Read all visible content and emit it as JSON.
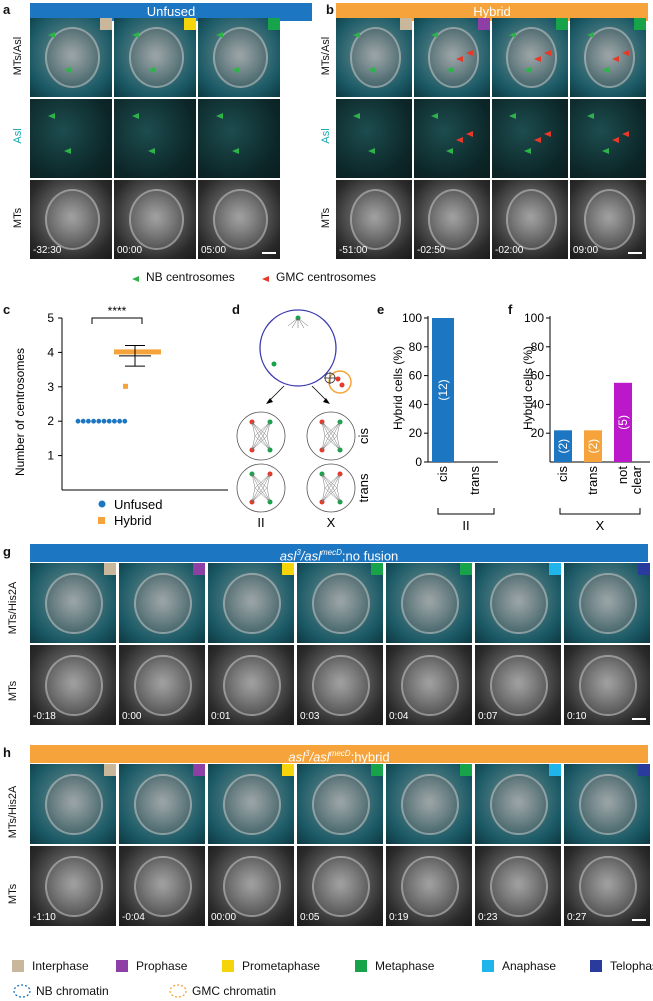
{
  "panels": {
    "a": "a",
    "b": "b",
    "c": "c",
    "d": "d",
    "e": "e",
    "f": "f",
    "g": "g",
    "h": "h"
  },
  "a": {
    "banner": "Unfused",
    "rows": [
      "MTs/Asl",
      "Asl",
      "MTs"
    ],
    "times": [
      "-32:30",
      "00:00",
      "05:00"
    ],
    "chips": [
      "#c8b79a",
      "#f5d40a",
      "#16a34a"
    ]
  },
  "b": {
    "banner": "Hybrid",
    "rows": [
      "MTs/Asl",
      "Asl",
      "MTs"
    ],
    "times": [
      "-51:00",
      "-02:50",
      "-02:00",
      "09:00"
    ],
    "chips": [
      "#c8b79a",
      "#8e3fa6",
      "#16a34a",
      "#16a34a"
    ]
  },
  "legend_ab": {
    "nb": "NB centrosomes",
    "gmc": "GMC centrosomes"
  },
  "c": {
    "ylabel": "Number of centrosomes",
    "sig": "****",
    "legend": [
      "Unfused",
      "Hybrid"
    ]
  },
  "d": {
    "cis": "cis",
    "trans": "trans",
    "ii": "II",
    "x": "X"
  },
  "e": {
    "ylabel": "Hybrid cells (%)",
    "group": "II"
  },
  "f": {
    "ylabel": "Hybrid cells (%)",
    "group": "X"
  },
  "g": {
    "banner_main": "asl",
    "banner_sup1": "3",
    "banner_sep": "/asl",
    "banner_sup2": "mecD",
    "banner_tail": ";no fusion",
    "rows": [
      "MTs/His2A",
      "MTs"
    ],
    "times": [
      "-0:18",
      "0:00",
      "0:01",
      "0:03",
      "0:04",
      "0:07",
      "0:10"
    ],
    "chips": [
      "#c8b79a",
      "#8e3fa6",
      "#f5d40a",
      "#16a34a",
      "#16a34a",
      "#1fb4ea",
      "#2a3b9e"
    ]
  },
  "h": {
    "banner_main": "asl",
    "banner_sup1": "3",
    "banner_sep": "/asl",
    "banner_sup2": "mecD",
    "banner_tail": ";hybrid",
    "rows": [
      "MTs/His2A",
      "MTs"
    ],
    "times": [
      "-1:10",
      "-0:04",
      "00:00",
      "0:05",
      "0:19",
      "0:23",
      "0:27"
    ],
    "chips": [
      "#c8b79a",
      "#8e3fa6",
      "#f5d40a",
      "#16a34a",
      "#16a34a",
      "#1fb4ea",
      "#2a3b9e"
    ]
  },
  "phase_legend": [
    {
      "label": "Interphase",
      "color": "#c8b79a"
    },
    {
      "label": "Prophase",
      "color": "#8e3fa6"
    },
    {
      "label": "Prometaphase",
      "color": "#f5d40a"
    },
    {
      "label": "Metaphase",
      "color": "#16a34a"
    },
    {
      "label": "Anaphase",
      "color": "#1fb4ea"
    },
    {
      "label": "Telophase",
      "color": "#2a3b9e"
    }
  ],
  "chromatin_legend": {
    "nb": "NB chromatin",
    "gmc": "GMC chromatin"
  },
  "colors": {
    "unfused": "#1d76c2",
    "hybrid": "#f5a33a",
    "purple": "#bb18c9"
  },
  "chart_data": [
    {
      "type": "scatter",
      "panel": "c",
      "ylabel": "Number of centrosomes",
      "ylim": [
        0,
        5
      ],
      "yticks": [
        1,
        2,
        3,
        4,
        5
      ],
      "series": [
        {
          "name": "Unfused",
          "values": [
            2,
            2,
            2,
            2,
            2,
            2,
            2,
            2,
            2,
            2
          ]
        },
        {
          "name": "Hybrid",
          "values": [
            4,
            4,
            4,
            4,
            4,
            4,
            4,
            4,
            4,
            4,
            4,
            3
          ]
        }
      ],
      "hybrid_mean": 3.9,
      "hybrid_error": [
        3.6,
        4.2
      ],
      "annotation": "****"
    },
    {
      "type": "bar",
      "panel": "e",
      "ylabel": "Hybrid cells (%)",
      "categories": [
        "cis",
        "trans"
      ],
      "values": [
        100,
        0
      ],
      "labels": [
        "(12)",
        ""
      ],
      "ylim": [
        0,
        100
      ],
      "yticks": [
        0,
        20,
        40,
        60,
        80,
        100
      ],
      "group": "II"
    },
    {
      "type": "bar",
      "panel": "f",
      "ylabel": "Hybrid cells (%)",
      "categories": [
        "cis",
        "trans",
        "not clear"
      ],
      "category_lines": [
        [
          "cis"
        ],
        [
          "trans"
        ],
        [
          "not",
          "clear"
        ]
      ],
      "values": [
        22,
        22,
        55
      ],
      "labels": [
        "(2)",
        "(2)",
        "(5)"
      ],
      "ylim": [
        0,
        100
      ],
      "yticks": [
        20,
        40,
        60,
        80,
        100
      ],
      "group": "X"
    }
  ]
}
